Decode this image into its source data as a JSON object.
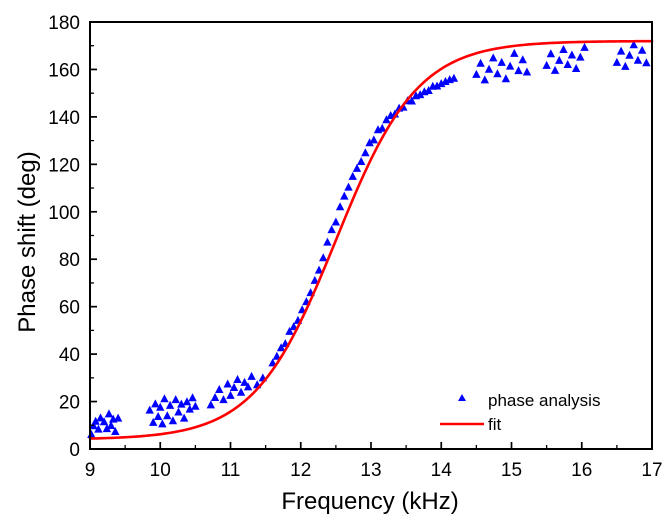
{
  "chart_data": {
    "type": "scatter",
    "title": "",
    "xlabel": "Frequency (kHz)",
    "ylabel": "Phase shift (deg)",
    "xlim": [
      9,
      17
    ],
    "ylim": [
      0,
      180
    ],
    "xticks": [
      9,
      10,
      11,
      12,
      13,
      14,
      15,
      16,
      17
    ],
    "yticks": [
      0,
      20,
      40,
      60,
      80,
      100,
      120,
      140,
      160,
      180
    ],
    "grid": false,
    "legend_position": "bottom-right",
    "series": [
      {
        "name": "phase analysis",
        "mark": "triangle",
        "color": "#0000ff",
        "points": [
          [
            9.02,
            6.1
          ],
          [
            9.05,
            9.8
          ],
          [
            9.08,
            11.7
          ],
          [
            9.12,
            8.4
          ],
          [
            9.15,
            13.1
          ],
          [
            9.2,
            11.5
          ],
          [
            9.24,
            8.6
          ],
          [
            9.27,
            14.8
          ],
          [
            9.3,
            9.9
          ],
          [
            9.33,
            12.6
          ],
          [
            9.36,
            7.4
          ],
          [
            9.4,
            13.0
          ],
          [
            9.85,
            16.4
          ],
          [
            9.9,
            11.2
          ],
          [
            9.93,
            19.0
          ],
          [
            9.97,
            13.7
          ],
          [
            10.0,
            17.6
          ],
          [
            10.03,
            10.6
          ],
          [
            10.06,
            21.2
          ],
          [
            10.1,
            14.0
          ],
          [
            10.14,
            18.4
          ],
          [
            10.18,
            11.9
          ],
          [
            10.22,
            20.8
          ],
          [
            10.26,
            15.6
          ],
          [
            10.3,
            18.9
          ],
          [
            10.34,
            13.0
          ],
          [
            10.38,
            19.9
          ],
          [
            10.42,
            16.8
          ],
          [
            10.46,
            21.6
          ],
          [
            10.5,
            18.0
          ],
          [
            10.72,
            18.6
          ],
          [
            10.78,
            21.7
          ],
          [
            10.84,
            25.1
          ],
          [
            10.9,
            20.8
          ],
          [
            10.96,
            27.4
          ],
          [
            11.0,
            22.6
          ],
          [
            11.05,
            25.9
          ],
          [
            11.1,
            29.3
          ],
          [
            11.15,
            23.9
          ],
          [
            11.2,
            28.1
          ],
          [
            11.25,
            26.2
          ],
          [
            11.3,
            30.6
          ],
          [
            11.38,
            27.1
          ],
          [
            11.46,
            30.0
          ],
          [
            11.6,
            36.3
          ],
          [
            11.66,
            39.1
          ],
          [
            11.72,
            42.7
          ],
          [
            11.78,
            44.4
          ],
          [
            11.84,
            49.6
          ],
          [
            11.9,
            51.6
          ],
          [
            11.96,
            54.2
          ],
          [
            12.02,
            58.7
          ],
          [
            12.08,
            62.1
          ],
          [
            12.14,
            65.9
          ],
          [
            12.2,
            71.1
          ],
          [
            12.26,
            75.4
          ],
          [
            12.32,
            80.6
          ],
          [
            12.38,
            87.2
          ],
          [
            12.44,
            92.5
          ],
          [
            12.5,
            95.7
          ],
          [
            12.56,
            102.1
          ],
          [
            12.62,
            106.6
          ],
          [
            12.68,
            110.4
          ],
          [
            12.74,
            114.9
          ],
          [
            12.8,
            118.3
          ],
          [
            12.86,
            121.2
          ],
          [
            12.92,
            124.9
          ],
          [
            12.98,
            129.1
          ],
          [
            13.04,
            130.3
          ],
          [
            13.1,
            134.6
          ],
          [
            13.16,
            135.2
          ],
          [
            13.22,
            138.8
          ],
          [
            13.28,
            140.6
          ],
          [
            13.34,
            141.2
          ],
          [
            13.4,
            143.7
          ],
          [
            13.46,
            144.1
          ],
          [
            13.52,
            146.8
          ],
          [
            13.58,
            146.7
          ],
          [
            13.64,
            148.9
          ],
          [
            13.7,
            149.4
          ],
          [
            13.76,
            150.6
          ],
          [
            13.82,
            151.1
          ],
          [
            13.88,
            152.9
          ],
          [
            13.94,
            153.0
          ],
          [
            14.0,
            154.0
          ],
          [
            14.06,
            154.9
          ],
          [
            14.12,
            155.7
          ],
          [
            14.18,
            156.3
          ],
          [
            14.5,
            157.9
          ],
          [
            14.56,
            162.6
          ],
          [
            14.62,
            155.6
          ],
          [
            14.68,
            160.1
          ],
          [
            14.74,
            164.9
          ],
          [
            14.8,
            158.2
          ],
          [
            14.86,
            163.0
          ],
          [
            14.92,
            156.1
          ],
          [
            14.98,
            161.4
          ],
          [
            15.04,
            166.8
          ],
          [
            15.1,
            159.5
          ],
          [
            15.16,
            164.1
          ],
          [
            15.22,
            158.9
          ],
          [
            15.5,
            161.7
          ],
          [
            15.56,
            166.6
          ],
          [
            15.62,
            159.6
          ],
          [
            15.68,
            163.8
          ],
          [
            15.74,
            168.4
          ],
          [
            15.8,
            162.1
          ],
          [
            15.86,
            166.1
          ],
          [
            15.92,
            160.4
          ],
          [
            15.98,
            165.2
          ],
          [
            16.04,
            169.3
          ],
          [
            16.5,
            163.0
          ],
          [
            16.56,
            167.7
          ],
          [
            16.62,
            161.3
          ],
          [
            16.68,
            166.0
          ],
          [
            16.74,
            170.4
          ],
          [
            16.8,
            163.9
          ],
          [
            16.86,
            168.1
          ],
          [
            16.92,
            162.8
          ]
        ]
      },
      {
        "name": "fit",
        "mark": "line",
        "color": "#ff0000",
        "fit": {
          "model": "sigmoid",
          "min": 4,
          "max": 172,
          "center": 12.5,
          "width": 0.58
        }
      }
    ]
  }
}
